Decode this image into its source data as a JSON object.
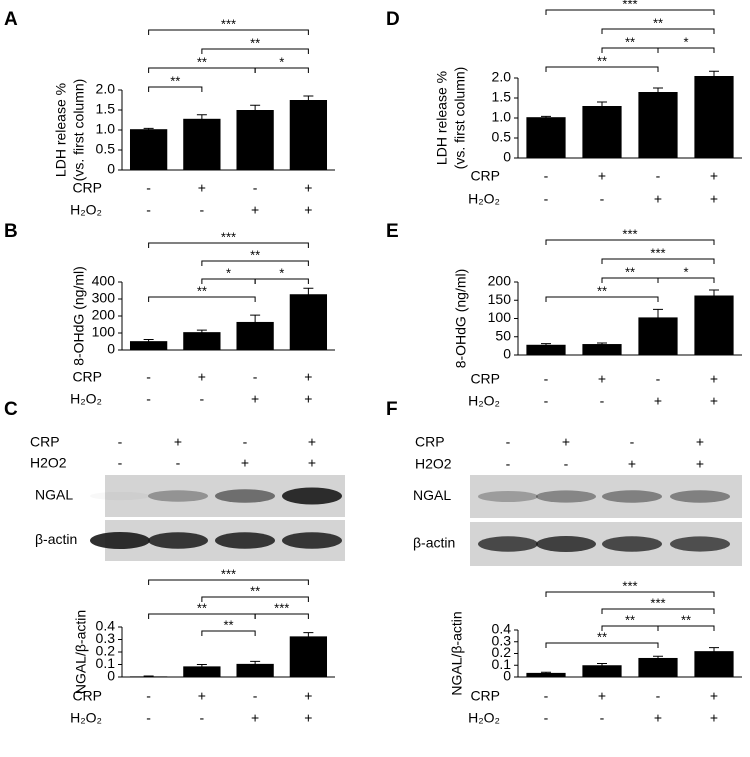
{
  "chart_data": [
    {
      "type": "bar",
      "label": "A",
      "ylabel": [
        "LDH release %",
        "(vs. first column)"
      ],
      "values": [
        1.02,
        1.28,
        1.5,
        1.75
      ],
      "errors": [
        0.02,
        0.1,
        0.12,
        0.1
      ],
      "color": "#000000",
      "ylim": [
        0,
        2
      ],
      "yticks": [
        0,
        0.5,
        {
          "value": 1,
          "label": "1.0"
        },
        1.5,
        {
          "value": 2,
          "label": "2.0"
        }
      ],
      "conditions": [
        {
          "name": "CRP",
          "values": [
            "-",
            "+",
            "-",
            "+"
          ]
        },
        {
          "name": "H₂O₂",
          "values": [
            "-",
            "-",
            "+",
            "+"
          ]
        }
      ],
      "brackets": [
        {
          "from": 0,
          "to": 3,
          "label": "***"
        },
        {
          "from": 1,
          "to": 3,
          "label": "**"
        },
        {
          "from": 0,
          "to": 2,
          "label": "**"
        },
        {
          "from": 2,
          "to": 3,
          "label": "*"
        },
        {
          "from": 0,
          "to": 1,
          "label": "**"
        }
      ]
    },
    {
      "type": "bar",
      "label": "B",
      "ylabel": [
        "8-OHdG (ng/ml)"
      ],
      "values": [
        52,
        105,
        165,
        328
      ],
      "errors": [
        10,
        12,
        40,
        35
      ],
      "color": "#000000",
      "ylim": [
        0,
        400
      ],
      "yticks": [
        0,
        100,
        200,
        300,
        400
      ],
      "conditions": [
        {
          "name": "CRP",
          "values": [
            "-",
            "+",
            "-",
            "+"
          ]
        },
        {
          "name": "H₂O₂",
          "values": [
            "-",
            "-",
            "+",
            "+"
          ]
        }
      ],
      "brackets": [
        {
          "from": 0,
          "to": 3,
          "label": "***"
        },
        {
          "from": 1,
          "to": 3,
          "label": "**"
        },
        {
          "from": 1,
          "to": 2,
          "label": "*"
        },
        {
          "from": 2,
          "to": 3,
          "label": "*"
        },
        {
          "from": 0,
          "to": 2,
          "label": "**"
        }
      ]
    },
    {
      "type": "bar",
      "label": "C",
      "ylabel": [
        "NGAL/β-actin"
      ],
      "blot": {
        "conditions": [
          {
            "name": "CRP",
            "values": [
              "-",
              "+",
              "-",
              "+"
            ]
          },
          {
            "name": "H2O2",
            "values": [
              "-",
              "-",
              "+",
              "+"
            ]
          }
        ],
        "bands": [
          "NGAL",
          "β-actin"
        ]
      },
      "values": [
        0.005,
        0.085,
        0.105,
        0.325
      ],
      "errors": [
        0.003,
        0.015,
        0.02,
        0.03
      ],
      "color": "#000000",
      "ylim": [
        0,
        0.4
      ],
      "yticks": [
        0,
        0.1,
        0.2,
        0.3,
        0.4
      ],
      "conditions": [
        {
          "name": "CRP",
          "values": [
            "-",
            "+",
            "-",
            "+"
          ]
        },
        {
          "name": "H₂O₂",
          "values": [
            "-",
            "-",
            "+",
            "+"
          ]
        }
      ],
      "brackets": [
        {
          "from": 0,
          "to": 3,
          "label": "***"
        },
        {
          "from": 1,
          "to": 3,
          "label": "**"
        },
        {
          "from": 0,
          "to": 2,
          "label": "**"
        },
        {
          "from": 2,
          "to": 3,
          "label": "***"
        },
        {
          "from": 1,
          "to": 2,
          "label": "**"
        }
      ]
    },
    {
      "type": "bar",
      "label": "D",
      "ylabel": [
        "LDH release %",
        "(vs. first column)"
      ],
      "values": [
        1.02,
        1.3,
        1.65,
        2.05
      ],
      "errors": [
        0.02,
        0.1,
        0.1,
        0.12
      ],
      "color": "#000000",
      "ylim": [
        0,
        2
      ],
      "yticks": [
        0,
        0.5,
        {
          "value": 1,
          "label": "1.0"
        },
        1.5,
        {
          "value": 2,
          "label": "2.0"
        }
      ],
      "conditions": [
        {
          "name": "CRP",
          "values": [
            "-",
            "+",
            "-",
            "+"
          ]
        },
        {
          "name": "H₂O₂",
          "values": [
            "-",
            "-",
            "+",
            "+"
          ]
        }
      ],
      "brackets": [
        {
          "from": 0,
          "to": 3,
          "label": "***"
        },
        {
          "from": 1,
          "to": 3,
          "label": "**"
        },
        {
          "from": 1,
          "to": 2,
          "label": "**"
        },
        {
          "from": 2,
          "to": 3,
          "label": "*"
        },
        {
          "from": 0,
          "to": 2,
          "label": "**"
        }
      ]
    },
    {
      "type": "bar",
      "label": "E",
      "ylabel": [
        "8-OHdG (ng/ml)"
      ],
      "values": [
        28,
        30,
        103,
        163
      ],
      "errors": [
        3,
        3,
        22,
        15
      ],
      "color": "#000000",
      "ylim": [
        0,
        200
      ],
      "yticks": [
        0,
        50,
        100,
        150,
        200
      ],
      "conditions": [
        {
          "name": "CRP",
          "values": [
            "-",
            "+",
            "-",
            "+"
          ]
        },
        {
          "name": "H₂O₂",
          "values": [
            "-",
            "-",
            "+",
            "+"
          ]
        }
      ],
      "brackets": [
        {
          "from": 0,
          "to": 3,
          "label": "***"
        },
        {
          "from": 1,
          "to": 3,
          "label": "***"
        },
        {
          "from": 1,
          "to": 2,
          "label": "**"
        },
        {
          "from": 2,
          "to": 3,
          "label": "*"
        },
        {
          "from": 0,
          "to": 2,
          "label": "**"
        }
      ]
    },
    {
      "type": "bar",
      "label": "F",
      "ylabel": [
        "NGAL/β-actin"
      ],
      "blot": {
        "conditions": [
          {
            "name": "CRP",
            "values": [
              "-",
              "+",
              "-",
              "+"
            ]
          },
          {
            "name": "H2O2",
            "values": [
              "-",
              "-",
              "+",
              "+"
            ]
          }
        ],
        "bands": [
          "NGAL",
          "β-actin"
        ]
      },
      "values": [
        0.035,
        0.1,
        0.162,
        0.22
      ],
      "errors": [
        0.005,
        0.015,
        0.015,
        0.03
      ],
      "color": "#000000",
      "ylim": [
        0,
        0.4
      ],
      "yticks": [
        0,
        0.1,
        0.2,
        0.3,
        0.4
      ],
      "conditions": [
        {
          "name": "CRP",
          "values": [
            "-",
            "+",
            "-",
            "+"
          ]
        },
        {
          "name": "H₂O₂",
          "values": [
            "-",
            "-",
            "+",
            "+"
          ]
        }
      ],
      "brackets": [
        {
          "from": 0,
          "to": 3,
          "label": "***"
        },
        {
          "from": 1,
          "to": 3,
          "label": "***"
        },
        {
          "from": 1,
          "to": 2,
          "label": "**"
        },
        {
          "from": 2,
          "to": 3,
          "label": "**"
        },
        {
          "from": 0,
          "to": 2,
          "label": "**"
        }
      ]
    }
  ]
}
